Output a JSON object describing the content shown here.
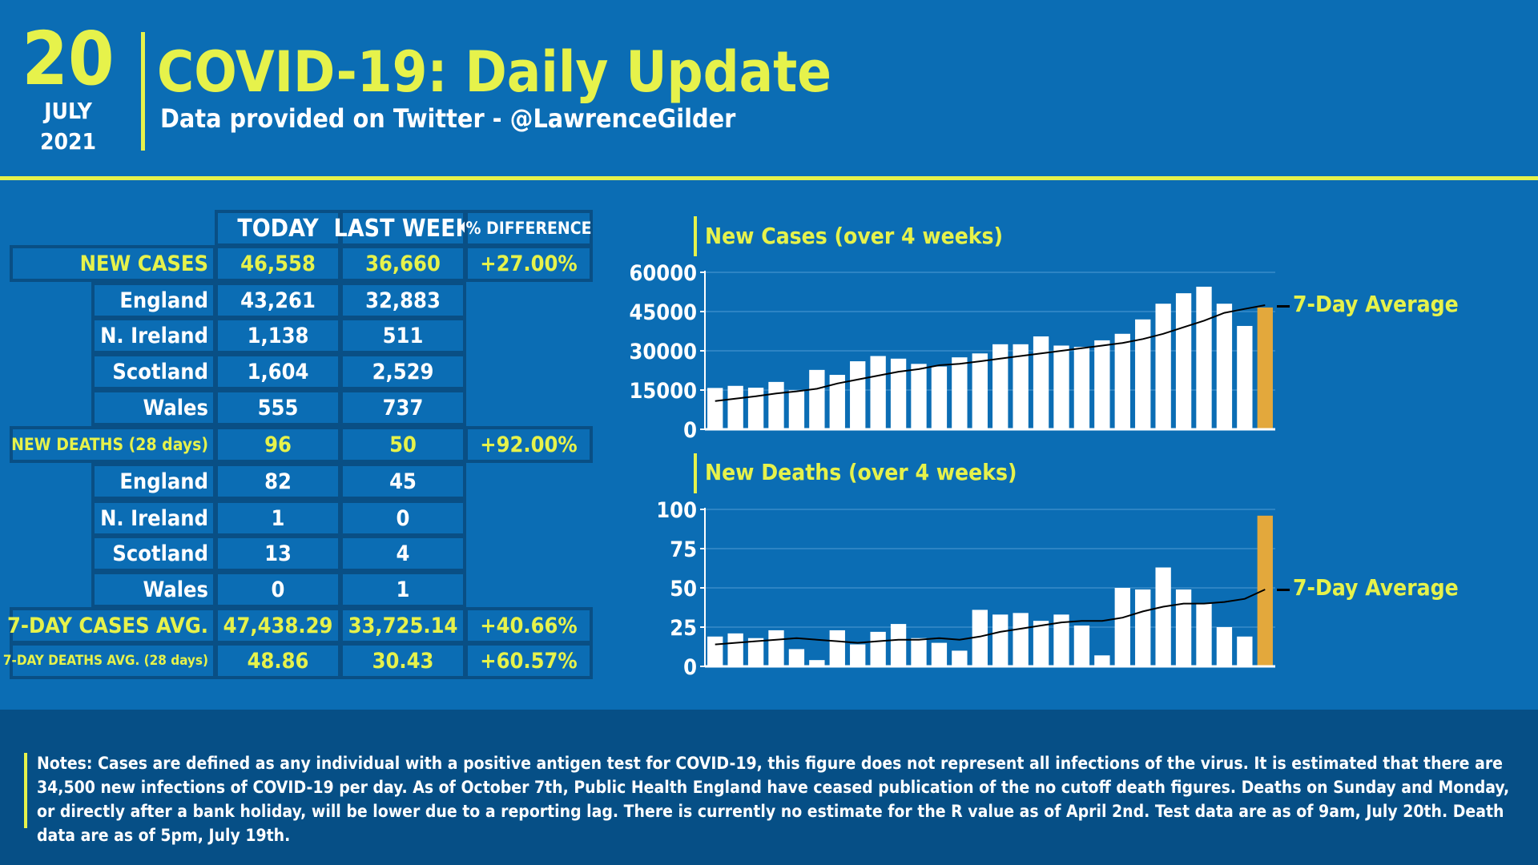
{
  "header": {
    "day": "20",
    "month": "JULY",
    "year": "2021",
    "title": "COVID-19: Daily Update",
    "subtitle": "Data provided on Twitter - @LawrenceGilder"
  },
  "table": {
    "columns": [
      "TODAY",
      "LAST WEEK",
      "% DIFFERENCE"
    ],
    "rows": [
      {
        "label": "NEW CASES",
        "today": "46,558",
        "last_week": "36,660",
        "diff": "+27.00%"
      },
      {
        "label": "England",
        "today": "43,261",
        "last_week": "32,883",
        "diff": ""
      },
      {
        "label": "N. Ireland",
        "today": "1,138",
        "last_week": "511",
        "diff": ""
      },
      {
        "label": "Scotland",
        "today": "1,604",
        "last_week": "2,529",
        "diff": ""
      },
      {
        "label": "Wales",
        "today": "555",
        "last_week": "737",
        "diff": ""
      },
      {
        "label": "NEW DEATHS (28 days)",
        "today": "96",
        "last_week": "50",
        "diff": "+92.00%"
      },
      {
        "label": "England",
        "today": "82",
        "last_week": "45",
        "diff": ""
      },
      {
        "label": "N. Ireland",
        "today": "1",
        "last_week": "0",
        "diff": ""
      },
      {
        "label": "Scotland",
        "today": "13",
        "last_week": "4",
        "diff": ""
      },
      {
        "label": "Wales",
        "today": "0",
        "last_week": "1",
        "diff": ""
      },
      {
        "label": "7-DAY CASES AVG.",
        "today": "47,438.29",
        "last_week": "33,725.14",
        "diff": "+40.66%"
      },
      {
        "label": "7-DAY DEATHS AVG. (28 days)",
        "today": "48.86",
        "last_week": "30.43",
        "diff": "+60.57%"
      }
    ]
  },
  "chart_data": [
    {
      "type": "bar",
      "title": "New Cases (over 4 weeks)",
      "ylim": [
        0,
        60000
      ],
      "yticks": [
        "0",
        "15000",
        "30000",
        "45000",
        "60000"
      ],
      "ytick_values": [
        0,
        15000,
        30000,
        45000,
        60000
      ],
      "legend": "7-Day Average",
      "legend_placement": "right",
      "grid": true,
      "bar_color": "#ffffff",
      "highlight_color": "#e3a83c",
      "line_color": "#000000",
      "values": [
        15800,
        16600,
        15900,
        18100,
        14900,
        22700,
        20800,
        26000,
        28000,
        27000,
        25000,
        24000,
        27500,
        29000,
        32500,
        32500,
        35500,
        32000,
        31500,
        34000,
        36500,
        42000,
        48000,
        52000,
        54500,
        48000,
        39500,
        46558
      ],
      "average": [
        10800,
        11700,
        12600,
        13700,
        14500,
        15500,
        17500,
        19000,
        20500,
        22000,
        23000,
        24500,
        25000,
        26000,
        27000,
        28000,
        29000,
        30000,
        31000,
        32000,
        33000,
        34500,
        36500,
        39000,
        41500,
        44500,
        46000,
        47438
      ]
    },
    {
      "type": "bar",
      "title": "New Deaths (over 4 weeks)",
      "ylim": [
        0,
        100
      ],
      "yticks": [
        "0",
        "25",
        "50",
        "75",
        "100"
      ],
      "ytick_values": [
        0,
        25,
        50,
        75,
        100
      ],
      "legend": "7-Day Average",
      "legend_placement": "right",
      "grid": true,
      "bar_color": "#ffffff",
      "highlight_color": "#e3a83c",
      "line_color": "#000000",
      "values": [
        19,
        21,
        18,
        23,
        11,
        4,
        23,
        14,
        22,
        27,
        18,
        15,
        10,
        36,
        33,
        34,
        29,
        33,
        26,
        7,
        50,
        49,
        63,
        49,
        40,
        25,
        19,
        96
      ],
      "average": [
        14,
        15,
        16,
        17,
        18,
        17,
        16,
        15,
        16,
        17,
        17,
        18,
        17,
        19,
        22,
        24,
        26,
        28,
        29,
        29,
        31,
        35,
        38,
        40,
        40,
        41,
        43,
        49
      ]
    }
  ],
  "footer": {
    "notes": "Notes: Cases are defined as any individual with a positive antigen test for COVID-19, this figure does not represent all infections of the virus. It is estimated that there are 34,500 new infections of COVID-19 per day. As of October 7th, Public Health England have ceased publication of the no cutoff death figures. Deaths on Sunday and Monday, or directly after a bank holiday, will be lower due to a reporting lag. There is currently no estimate for the R value as of April 2nd. Test data are as of 9am, July 20th. Death data are as of 5pm, July 19th."
  }
}
